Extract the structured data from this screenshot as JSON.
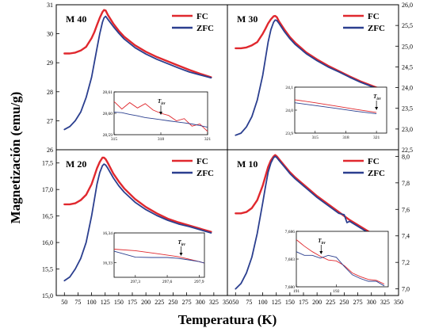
{
  "figure": {
    "xlabel": "Temperatura (K)",
    "ylabel": "Magnetización (emu/g)",
    "series_colors": {
      "FC": "#e0282e",
      "ZFC": "#2b3f8f"
    },
    "frame_color": "#000000"
  },
  "chart_data": [
    {
      "type": "line",
      "panel": "top-left",
      "label": "M 40",
      "xlim": [
        35,
        350
      ],
      "ylim": [
        26,
        31
      ],
      "xticks": [],
      "yticks": [
        26,
        27,
        28,
        29,
        30,
        31
      ],
      "tick_labels_y": [
        "26",
        "27",
        "28",
        "29",
        "30",
        "31"
      ],
      "legend": "top-right",
      "series": [
        {
          "name": "FC",
          "x": [
            50,
            60,
            70,
            80,
            90,
            100,
            105,
            110,
            115,
            120,
            123,
            126,
            130,
            140,
            150,
            160,
            180,
            200,
            220,
            240,
            260,
            280,
            300,
            320
          ],
          "y": [
            29.32,
            29.32,
            29.35,
            29.42,
            29.55,
            29.85,
            30.05,
            30.3,
            30.55,
            30.75,
            30.82,
            30.8,
            30.65,
            30.35,
            30.1,
            29.9,
            29.6,
            29.38,
            29.2,
            29.05,
            28.9,
            28.75,
            28.62,
            28.5
          ]
        },
        {
          "name": "ZFC",
          "x": [
            50,
            60,
            70,
            80,
            90,
            100,
            105,
            110,
            115,
            120,
            123,
            126,
            130,
            140,
            150,
            160,
            180,
            200,
            220,
            240,
            260,
            280,
            300,
            320
          ],
          "y": [
            26.7,
            26.8,
            27.0,
            27.3,
            27.8,
            28.5,
            29.0,
            29.5,
            30.0,
            30.4,
            30.55,
            30.6,
            30.5,
            30.25,
            30.02,
            29.82,
            29.52,
            29.3,
            29.12,
            28.97,
            28.82,
            28.68,
            28.58,
            28.48
          ]
        }
      ],
      "inset": {
        "xlim": [
          315,
          321
        ],
        "ylim": [
          28.59,
          28.61
        ],
        "xticks": [
          315,
          318,
          321
        ],
        "tick_labels_x": [
          "315",
          "318",
          "321"
        ],
        "yticks": [
          28.59,
          28.6,
          28.61
        ],
        "tick_labels_y": [
          "28,59",
          "28,60",
          "28,61"
        ],
        "annotation": "T",
        "annotation_sub": "irr",
        "arrow_x": 318,
        "series": [
          {
            "name": "FC",
            "x": [
              315,
              315.5,
              316,
              316.5,
              317,
              317.5,
              318,
              318.5,
              319,
              319.5,
              320,
              320.5,
              321
            ],
            "y": [
              28.6055,
              28.602,
              28.605,
              28.6025,
              28.6045,
              28.6015,
              28.6,
              28.599,
              28.5965,
              28.5975,
              28.594,
              28.595,
              28.5915
            ]
          },
          {
            "name": "ZFC",
            "x": [
              315,
              315.5,
              316,
              316.5,
              317,
              317.5,
              318,
              318.5,
              319,
              319.5,
              320,
              320.5,
              321
            ],
            "y": [
              28.6005,
              28.6003,
              28.5995,
              28.5988,
              28.598,
              28.5975,
              28.597,
              28.5965,
              28.596,
              28.5955,
              28.595,
              28.5943,
              28.5935
            ]
          }
        ]
      }
    },
    {
      "type": "line",
      "panel": "top-right",
      "label": "M 30",
      "xlim": [
        35,
        350
      ],
      "ylim": [
        22.5,
        26
      ],
      "xticks": [],
      "yticks": [
        22.5,
        23,
        23.5,
        24,
        24.5,
        25,
        25.5,
        26
      ],
      "tick_labels_y": [
        "22,5",
        "23,0",
        "23,5",
        "24,0",
        "24,5",
        "25,0",
        "25,5",
        "26,0"
      ],
      "legend": "top-right",
      "series": [
        {
          "name": "FC",
          "x": [
            50,
            60,
            70,
            80,
            90,
            100,
            105,
            110,
            115,
            120,
            123,
            126,
            130,
            140,
            150,
            160,
            180,
            200,
            220,
            240,
            260,
            280,
            300,
            320
          ],
          "y": [
            24.95,
            24.95,
            24.97,
            25.02,
            25.1,
            25.3,
            25.42,
            25.55,
            25.65,
            25.72,
            25.73,
            25.7,
            25.6,
            25.4,
            25.22,
            25.08,
            24.85,
            24.68,
            24.53,
            24.4,
            24.27,
            24.15,
            24.05,
            23.95
          ]
        },
        {
          "name": "ZFC",
          "x": [
            50,
            60,
            70,
            80,
            90,
            100,
            105,
            110,
            115,
            120,
            123,
            126,
            130,
            140,
            150,
            160,
            180,
            200,
            220,
            240,
            260,
            280,
            300,
            320
          ],
          "y": [
            22.85,
            22.9,
            23.05,
            23.3,
            23.7,
            24.3,
            24.7,
            25.1,
            25.4,
            25.58,
            25.63,
            25.62,
            25.55,
            25.35,
            25.18,
            25.04,
            24.82,
            24.65,
            24.5,
            24.38,
            24.25,
            24.13,
            24.03,
            23.93
          ]
        }
      ],
      "inset": {
        "xlim": [
          313,
          322
        ],
        "ylim": [
          23.9,
          24.1
        ],
        "xticks": [
          315,
          318,
          321
        ],
        "tick_labels_x": [
          "315",
          "318",
          "321"
        ],
        "yticks": [
          23.9,
          24.0,
          24.1
        ],
        "tick_labels_y": [
          "23,9",
          "24,0",
          "24,1"
        ],
        "annotation": "T",
        "annotation_sub": "irr",
        "arrow_x": 321,
        "series": [
          {
            "name": "FC",
            "x": [
              313,
              315,
              317,
              319,
              321
            ],
            "y": [
              24.045,
              24.032,
              24.018,
              24.003,
              23.99
            ]
          },
          {
            "name": "ZFC",
            "x": [
              313,
              315,
              317,
              319,
              321
            ],
            "y": [
              24.032,
              24.02,
              24.008,
              23.995,
              23.984
            ]
          }
        ]
      }
    },
    {
      "type": "line",
      "panel": "bottom-left",
      "label": "M 20",
      "xlim": [
        35,
        350
      ],
      "ylim": [
        15,
        17.75
      ],
      "xticks": [
        50,
        75,
        100,
        125,
        150,
        175,
        200,
        225,
        250,
        275,
        300,
        325,
        350
      ],
      "tick_labels_x": [
        "50",
        "75",
        "100",
        "125",
        "150",
        "175",
        "200",
        "225",
        "250",
        "275",
        "300",
        "325",
        "350"
      ],
      "yticks": [
        15,
        15.5,
        16,
        16.5,
        17,
        17.5
      ],
      "tick_labels_y": [
        "15,0",
        "15,5",
        "16,0",
        "16,5",
        "17,0",
        "17,5"
      ],
      "legend": "top-right",
      "series": [
        {
          "name": "FC",
          "x": [
            50,
            60,
            70,
            80,
            90,
            100,
            105,
            110,
            115,
            120,
            123,
            126,
            130,
            140,
            150,
            160,
            180,
            200,
            220,
            240,
            260,
            280,
            300,
            320
          ],
          "y": [
            16.72,
            16.72,
            16.74,
            16.8,
            16.9,
            17.1,
            17.25,
            17.4,
            17.52,
            17.6,
            17.6,
            17.57,
            17.5,
            17.3,
            17.15,
            17.02,
            16.82,
            16.67,
            16.55,
            16.45,
            16.38,
            16.32,
            16.26,
            16.2
          ]
        },
        {
          "name": "ZFC",
          "x": [
            50,
            60,
            70,
            80,
            90,
            100,
            105,
            110,
            115,
            120,
            123,
            126,
            130,
            140,
            150,
            160,
            180,
            200,
            220,
            240,
            260,
            280,
            300,
            320
          ],
          "y": [
            15.28,
            15.35,
            15.5,
            15.7,
            16.0,
            16.5,
            16.8,
            17.1,
            17.32,
            17.45,
            17.48,
            17.46,
            17.4,
            17.22,
            17.07,
            16.95,
            16.76,
            16.62,
            16.51,
            16.42,
            16.35,
            16.3,
            16.24,
            16.18
          ]
        }
      ],
      "inset": {
        "xlim": [
          297.1,
          297.95
        ],
        "ylim": [
          16.325,
          16.34
        ],
        "xticks": [
          297.3,
          297.6,
          297.9
        ],
        "tick_labels_x": [
          "297,3",
          "297,6",
          "297,9"
        ],
        "yticks": [
          16.33,
          16.34
        ],
        "tick_labels_y": [
          "16,33",
          "16,34"
        ],
        "annotation": "T",
        "annotation_sub": "irr",
        "arrow_x": 297.73,
        "series": [
          {
            "name": "FC",
            "x": [
              297.1,
              297.3,
              297.5,
              297.7,
              297.8,
              297.9,
              297.95
            ],
            "y": [
              16.3345,
              16.334,
              16.333,
              16.332,
              16.3312,
              16.3303,
              16.3298
            ]
          },
          {
            "name": "ZFC",
            "x": [
              297.1,
              297.3,
              297.45,
              297.6,
              297.7,
              297.8,
              297.9,
              297.95
            ],
            "y": [
              16.3338,
              16.3318,
              16.3317,
              16.3317,
              16.3314,
              16.3309,
              16.3303,
              16.3298
            ]
          }
        ]
      }
    },
    {
      "type": "line",
      "panel": "bottom-right",
      "label": "M 10",
      "xlim": [
        35,
        350
      ],
      "ylim": [
        6.95,
        8.05
      ],
      "xticks": [
        50,
        75,
        100,
        125,
        150,
        175,
        200,
        225,
        250,
        275,
        300,
        325,
        350
      ],
      "tick_labels_x": [
        "50",
        "75",
        "100",
        "125",
        "150",
        "175",
        "200",
        "225",
        "250",
        "275",
        "300",
        "325",
        "350"
      ],
      "yticks": [
        7.0,
        7.2,
        7.4,
        7.6,
        7.8,
        8.0
      ],
      "tick_labels_y": [
        "7,0",
        "7,2",
        "7,4",
        "7,6",
        "7,8",
        "8,0"
      ],
      "legend": "top-right",
      "series": [
        {
          "name": "FC",
          "x": [
            50,
            60,
            70,
            80,
            90,
            100,
            105,
            110,
            115,
            120,
            123,
            126,
            130,
            140,
            150,
            160,
            180,
            200,
            220,
            240,
            260,
            280,
            300,
            320
          ],
          "y": [
            7.57,
            7.57,
            7.58,
            7.61,
            7.67,
            7.78,
            7.85,
            7.92,
            7.97,
            8.0,
            8.01,
            8.0,
            7.98,
            7.93,
            7.88,
            7.84,
            7.77,
            7.7,
            7.64,
            7.58,
            7.52,
            7.47,
            7.42,
            7.38
          ]
        },
        {
          "name": "ZFC",
          "x": [
            50,
            60,
            70,
            80,
            90,
            100,
            105,
            110,
            115,
            120,
            123,
            126,
            130,
            140,
            150,
            160,
            180,
            200,
            220,
            240,
            250,
            255,
            260,
            280,
            300,
            320
          ],
          "y": [
            7.0,
            7.04,
            7.12,
            7.24,
            7.42,
            7.65,
            7.77,
            7.88,
            7.95,
            7.99,
            8.0,
            7.99,
            7.97,
            7.92,
            7.87,
            7.83,
            7.76,
            7.69,
            7.63,
            7.57,
            7.56,
            7.5,
            7.51,
            7.46,
            7.41,
            7.37
          ]
        }
      ],
      "inset": {
        "xlim": [
          191,
          193.3
        ],
        "ylim": [
          7.68,
          7.686
        ],
        "xticks": [
          191,
          192
        ],
        "tick_labels_x": [
          "191",
          "192"
        ],
        "yticks": [
          7.68,
          7.683,
          7.686
        ],
        "tick_labels_y": [
          "7,680",
          "7,683",
          "7,686"
        ],
        "annotation": "T",
        "annotation_sub": "irr",
        "arrow_x": 191.62,
        "series": [
          {
            "name": "FC",
            "x": [
              191,
              191.2,
              191.4,
              191.6,
              191.8,
              192.0,
              192.2,
              192.4,
              192.6,
              192.8,
              193.0,
              193.2
            ],
            "y": [
              7.6851,
              7.6844,
              7.6838,
              7.6833,
              7.6829,
              7.6828,
              7.6823,
              7.6815,
              7.6811,
              7.6808,
              7.6807,
              7.6803
            ]
          },
          {
            "name": "ZFC",
            "x": [
              191,
              191.2,
              191.4,
              191.6,
              191.8,
              192.0,
              192.2,
              192.4,
              192.6,
              192.8,
              193.0,
              193.2
            ],
            "y": [
              7.6838,
              7.6834,
              7.6834,
              7.6831,
              7.6834,
              7.6832,
              7.6822,
              7.6813,
              7.6809,
              7.6806,
              7.6806,
              7.6801
            ]
          }
        ]
      }
    }
  ]
}
